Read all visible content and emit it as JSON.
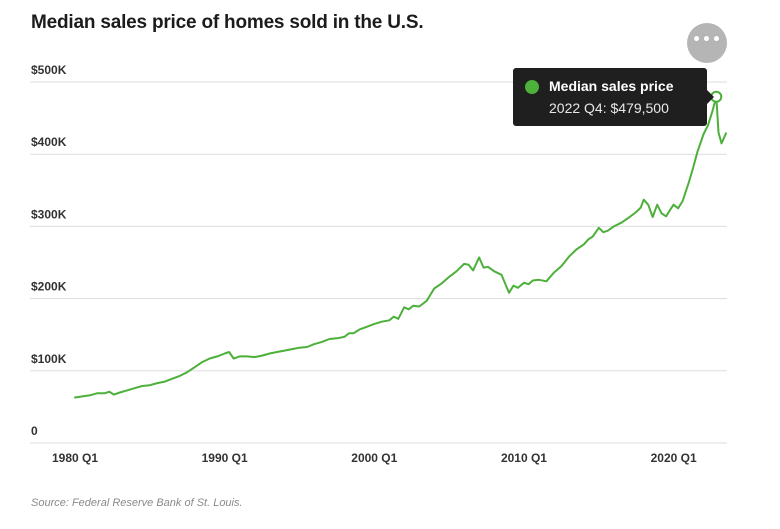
{
  "title": "Median sales price of homes sold in the U.S.",
  "source": "Source: Federal Reserve Bank of St. Louis.",
  "menu": {
    "icon": "ellipsis-icon",
    "glyph": "•••"
  },
  "tooltip": {
    "series_name": "Median sales price",
    "value_text": "2022 Q4: $479,500",
    "dot_color": "#4cb03a"
  },
  "colors": {
    "line": "#4cb03a",
    "grid": "#dddddd",
    "tooltip_bg": "#1f1f1f"
  },
  "chart_data": {
    "type": "line",
    "title": "Median sales price of homes sold in the U.S.",
    "xlabel": "",
    "ylabel": "",
    "xlim": [
      1980.0,
      2023.5
    ],
    "ylim": [
      0,
      500000
    ],
    "grid": true,
    "y_ticks": [
      {
        "value": 0,
        "label": "0"
      },
      {
        "value": 100000,
        "label": "$100K"
      },
      {
        "value": 200000,
        "label": "$200K"
      },
      {
        "value": 300000,
        "label": "$300K"
      },
      {
        "value": 400000,
        "label": "$400K"
      },
      {
        "value": 500000,
        "label": "$500K"
      }
    ],
    "x_ticks": [
      {
        "value": 1980.0,
        "label": "1980 Q1"
      },
      {
        "value": 1990.0,
        "label": "1990 Q1"
      },
      {
        "value": 2000.0,
        "label": "2000 Q1"
      },
      {
        "value": 2010.0,
        "label": "2010 Q1"
      },
      {
        "value": 2020.0,
        "label": "2020 Q1"
      }
    ],
    "series": [
      {
        "name": "Median sales price",
        "color": "#4cb03a",
        "points": [
          [
            1980.0,
            63000
          ],
          [
            1980.5,
            64500
          ],
          [
            1981.0,
            66000
          ],
          [
            1981.5,
            69000
          ],
          [
            1982.0,
            69000
          ],
          [
            1982.3,
            71000
          ],
          [
            1982.6,
            67000
          ],
          [
            1983.0,
            70000
          ],
          [
            1983.5,
            73000
          ],
          [
            1984.0,
            76000
          ],
          [
            1984.5,
            79000
          ],
          [
            1985.0,
            80000
          ],
          [
            1985.5,
            83000
          ],
          [
            1986.0,
            85000
          ],
          [
            1986.5,
            89000
          ],
          [
            1987.0,
            93000
          ],
          [
            1987.5,
            98000
          ],
          [
            1988.0,
            105000
          ],
          [
            1988.5,
            112000
          ],
          [
            1989.0,
            117000
          ],
          [
            1989.5,
            120000
          ],
          [
            1990.0,
            124000
          ],
          [
            1990.3,
            126000
          ],
          [
            1990.6,
            117000
          ],
          [
            1991.0,
            120000
          ],
          [
            1991.5,
            120000
          ],
          [
            1992.0,
            119000
          ],
          [
            1992.5,
            121000
          ],
          [
            1993.0,
            124000
          ],
          [
            1993.5,
            126000
          ],
          [
            1994.0,
            128000
          ],
          [
            1994.5,
            130000
          ],
          [
            1995.0,
            132000
          ],
          [
            1995.5,
            133000
          ],
          [
            1996.0,
            137000
          ],
          [
            1996.5,
            140000
          ],
          [
            1997.0,
            144000
          ],
          [
            1997.5,
            145000
          ],
          [
            1998.0,
            147000
          ],
          [
            1998.3,
            152000
          ],
          [
            1998.6,
            152000
          ],
          [
            1999.0,
            157000
          ],
          [
            1999.5,
            161000
          ],
          [
            2000.0,
            165000
          ],
          [
            2000.5,
            168000
          ],
          [
            2001.0,
            170000
          ],
          [
            2001.3,
            175000
          ],
          [
            2001.6,
            172000
          ],
          [
            2002.0,
            188000
          ],
          [
            2002.3,
            185000
          ],
          [
            2002.6,
            190000
          ],
          [
            2003.0,
            189000
          ],
          [
            2003.5,
            197000
          ],
          [
            2004.0,
            214000
          ],
          [
            2004.5,
            221000
          ],
          [
            2005.0,
            230000
          ],
          [
            2005.5,
            238000
          ],
          [
            2006.0,
            248000
          ],
          [
            2006.3,
            247000
          ],
          [
            2006.6,
            239000
          ],
          [
            2007.0,
            257000
          ],
          [
            2007.3,
            243000
          ],
          [
            2007.6,
            244000
          ],
          [
            2008.0,
            238000
          ],
          [
            2008.5,
            233000
          ],
          [
            2009.0,
            208000
          ],
          [
            2009.3,
            218000
          ],
          [
            2009.6,
            215000
          ],
          [
            2010.0,
            222000
          ],
          [
            2010.3,
            220000
          ],
          [
            2010.6,
            225000
          ],
          [
            2011.0,
            226000
          ],
          [
            2011.5,
            224000
          ],
          [
            2012.0,
            236000
          ],
          [
            2012.5,
            245000
          ],
          [
            2013.0,
            258000
          ],
          [
            2013.5,
            268000
          ],
          [
            2014.0,
            275000
          ],
          [
            2014.3,
            282000
          ],
          [
            2014.6,
            286000
          ],
          [
            2015.0,
            298000
          ],
          [
            2015.3,
            292000
          ],
          [
            2015.6,
            294000
          ],
          [
            2016.0,
            300000
          ],
          [
            2016.5,
            305000
          ],
          [
            2017.0,
            312000
          ],
          [
            2017.5,
            320000
          ],
          [
            2017.8,
            326000
          ],
          [
            2018.0,
            337000
          ],
          [
            2018.3,
            330000
          ],
          [
            2018.6,
            313000
          ],
          [
            2018.9,
            330000
          ],
          [
            2019.2,
            318000
          ],
          [
            2019.5,
            314000
          ],
          [
            2019.8,
            324000
          ],
          [
            2020.0,
            330000
          ],
          [
            2020.3,
            325000
          ],
          [
            2020.6,
            335000
          ],
          [
            2021.0,
            360000
          ],
          [
            2021.3,
            381000
          ],
          [
            2021.6,
            404000
          ],
          [
            2022.0,
            428000
          ],
          [
            2022.3,
            440000
          ],
          [
            2022.6,
            460000
          ],
          [
            2022.85,
            479500
          ],
          [
            2023.0,
            430000
          ],
          [
            2023.2,
            415000
          ],
          [
            2023.5,
            429000
          ]
        ],
        "highlight": {
          "x": 2022.85,
          "y": 479500,
          "label": "2022 Q4: $479,500"
        }
      }
    ]
  }
}
